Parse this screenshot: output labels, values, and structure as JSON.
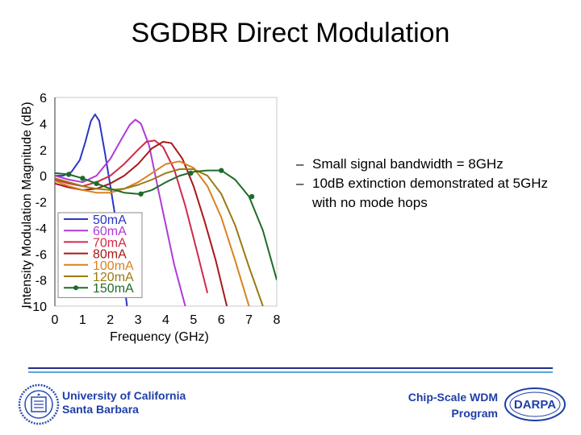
{
  "slide": {
    "title": "SGDBR Direct Modulation",
    "bullets": [
      {
        "dash": "–",
        "text": "Small signal bandwidth = 8GHz"
      },
      {
        "dash": "–",
        "text": "10dB extinction demonstrated at 5GHz with no mode hops"
      }
    ],
    "footer": {
      "institution_line1": "University of California",
      "institution_line2": "Santa Barbara",
      "program_line1": "Chip-Scale WDM",
      "program_line2": "Program",
      "darpa_logo_text": "DARPA",
      "rule_colors": [
        "#1f2f8f",
        "#5aa7d6"
      ]
    }
  },
  "chart_data": {
    "type": "line",
    "title": "",
    "xlabel": "Frequency (GHz)",
    "ylabel": "Intensity Modulation Magnitude (dB)",
    "xlim": [
      0,
      8
    ],
    "ylim": [
      -10,
      6
    ],
    "xticks": [
      0,
      1,
      2,
      3,
      4,
      5,
      6,
      7,
      8
    ],
    "yticks": [
      6,
      4,
      2,
      0,
      -2,
      -4,
      -6,
      -8,
      -10
    ],
    "grid": false,
    "legend_position": "bottom-left",
    "series": [
      {
        "name": "50mA",
        "color": "#2a36c8",
        "marker": "none",
        "x": [
          0,
          0.3,
          0.6,
          0.9,
          1.1,
          1.3,
          1.45,
          1.6,
          1.8,
          2.0,
          2.3,
          2.6
        ],
        "y": [
          0.0,
          0.0,
          0.3,
          1.2,
          2.6,
          4.2,
          4.7,
          4.2,
          1.8,
          -0.8,
          -4.8,
          -10
        ]
      },
      {
        "name": "60mA",
        "color": "#b03ad8",
        "marker": "none",
        "x": [
          0,
          0.5,
          1.0,
          1.5,
          2.0,
          2.4,
          2.7,
          2.9,
          3.1,
          3.4,
          3.7,
          4.0,
          4.3,
          4.7
        ],
        "y": [
          0.0,
          -0.3,
          -0.5,
          0.0,
          1.3,
          2.8,
          3.9,
          4.3,
          4.0,
          2.3,
          -0.8,
          -3.8,
          -6.8,
          -10
        ]
      },
      {
        "name": "70mA",
        "color": "#d02a4a",
        "marker": "none",
        "x": [
          0,
          0.5,
          1.0,
          1.5,
          2.0,
          2.5,
          3.0,
          3.3,
          3.6,
          3.9,
          4.3,
          4.7,
          5.1,
          5.5
        ],
        "y": [
          -0.3,
          -0.6,
          -0.8,
          -0.5,
          0.0,
          0.9,
          2.0,
          2.6,
          2.7,
          2.2,
          0.5,
          -2.3,
          -5.6,
          -9.0
        ]
      },
      {
        "name": "80mA",
        "color": "#a81818",
        "marker": "none",
        "x": [
          0,
          0.5,
          1.0,
          1.5,
          2.0,
          2.5,
          3.0,
          3.5,
          3.9,
          4.2,
          4.6,
          5.0,
          5.4,
          5.8,
          6.2
        ],
        "y": [
          -0.6,
          -0.9,
          -1.1,
          -1.0,
          -0.6,
          0.0,
          0.9,
          2.1,
          2.6,
          2.5,
          1.3,
          -0.8,
          -3.5,
          -6.5,
          -10
        ]
      },
      {
        "name": "100mA",
        "color": "#d9821f",
        "marker": "none",
        "x": [
          0,
          0.5,
          1.0,
          1.5,
          2.0,
          2.5,
          3.0,
          3.5,
          4.0,
          4.5,
          5.0,
          5.5,
          6.0,
          6.5,
          7.0
        ],
        "y": [
          -0.4,
          -0.8,
          -1.1,
          -1.3,
          -1.3,
          -1.0,
          -0.5,
          0.2,
          0.9,
          1.1,
          0.6,
          -0.8,
          -3.2,
          -6.5,
          -10
        ]
      },
      {
        "name": "120mA",
        "color": "#9a7a12",
        "marker": "none",
        "x": [
          0,
          0.5,
          1.0,
          1.5,
          2.0,
          2.5,
          3.0,
          3.5,
          4.0,
          4.5,
          5.0,
          5.5,
          6.0,
          6.5,
          7.0,
          7.5
        ],
        "y": [
          -0.2,
          -0.5,
          -0.8,
          -1.0,
          -1.1,
          -1.0,
          -0.7,
          -0.3,
          0.2,
          0.5,
          0.5,
          0.0,
          -1.4,
          -3.8,
          -7.0,
          -10
        ]
      },
      {
        "name": "150mA",
        "color": "#1f6b2a",
        "marker": "circle",
        "x": [
          0,
          0.5,
          1.0,
          1.5,
          2.0,
          2.5,
          3.0,
          3.5,
          4.0,
          4.5,
          5.0,
          5.5,
          6.0,
          6.5,
          7.0,
          7.5,
          8.0
        ],
        "y": [
          0.2,
          0.1,
          -0.2,
          -0.6,
          -1.0,
          -1.3,
          -1.4,
          -1.1,
          -0.5,
          0.0,
          0.3,
          0.4,
          0.4,
          -0.3,
          -1.6,
          -4.2,
          -8.0
        ],
        "marker_x": [
          0.5,
          1.0,
          1.5,
          3.1,
          4.9,
          6.0,
          7.1
        ],
        "marker_y": [
          0.1,
          -0.2,
          -0.6,
          -1.4,
          0.2,
          0.4,
          -1.6
        ]
      }
    ]
  }
}
